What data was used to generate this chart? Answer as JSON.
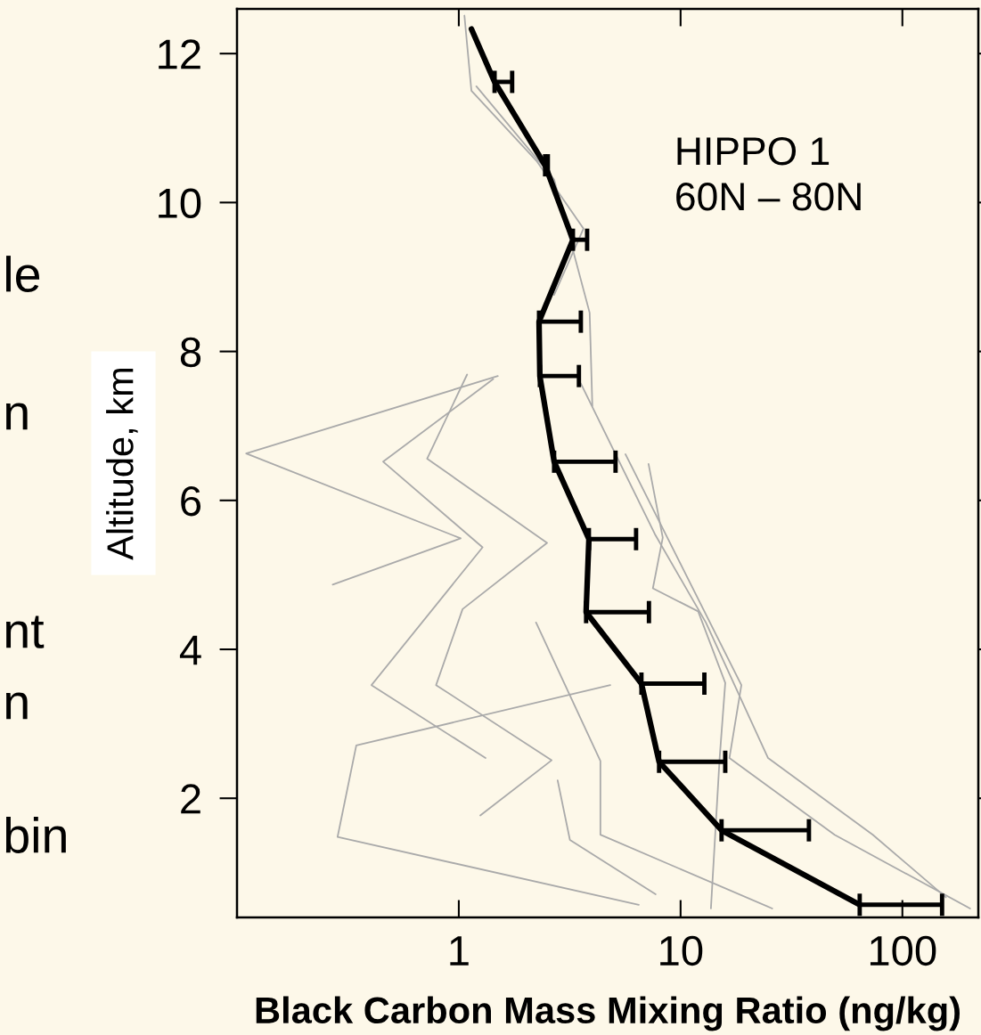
{
  "chart_data": {
    "type": "line",
    "xlabel": "Black Carbon Mass Mixing Ratio (ng/kg)",
    "ylabel": "Altitude, km",
    "log": "x",
    "xlim": [
      0.1,
      220
    ],
    "xticks": [
      1,
      10,
      100
    ],
    "ylim": [
      0.4,
      12.6
    ],
    "yticks": [
      2,
      4,
      6,
      8,
      10,
      12
    ],
    "grid": false,
    "legend": false,
    "annotations": [
      "HIPPO 1\n60N – 80N",
      "le",
      "n",
      "nt",
      "n",
      "bin"
    ],
    "series": [
      {
        "color": "#aaaaaa",
        "x": [
          1.06,
          1.14,
          2.24,
          3.65,
          2.69
        ],
        "values": [
          12.51,
          11.5,
          10.56,
          9.65,
          8.76
        ]
      },
      {
        "color": "#aaaaaa",
        "x": [
          1.2,
          2.69,
          3.89,
          4.0
        ],
        "values": [
          11.56,
          10.31,
          8.52,
          7.27
        ]
      },
      {
        "color": "#aaaaaa",
        "x": [
          1.5,
          0.11,
          1.02,
          0.27
        ],
        "values": [
          7.67,
          6.63,
          5.49,
          4.87
        ]
      },
      {
        "color": "#aaaaaa",
        "x": [
          4.82,
          0.345,
          0.284,
          6.48
        ],
        "values": [
          3.52,
          2.71,
          1.48,
          0.57
        ]
      },
      {
        "color": "#aaaaaa",
        "x": [
          1.43,
          0.456,
          1.28,
          0.404,
          1.32
        ],
        "values": [
          7.63,
          6.52,
          5.37,
          3.52,
          2.54
        ]
      },
      {
        "color": "#aaaaaa",
        "x": [
          1.09,
          0.72,
          2.5,
          1.04,
          0.79,
          2.62,
          1.25
        ],
        "values": [
          7.69,
          6.56,
          5.43,
          4.54,
          3.52,
          2.51,
          1.77
        ]
      },
      {
        "color": "#aaaaaa",
        "x": [
          7.17,
          8.31,
          7.5,
          12.0,
          15.9,
          15.0,
          13.7
        ],
        "values": [
          6.49,
          5.5,
          4.82,
          4.51,
          3.55,
          2.54,
          0.52
        ]
      },
      {
        "color": "#aaaaaa",
        "x": [
          5.64,
          18.8,
          16.6,
          49.5,
          202
        ],
        "values": [
          6.62,
          3.52,
          2.54,
          1.51,
          0.52
        ]
      },
      {
        "color": "#aaaaaa",
        "x": [
          3.55,
          7.65,
          13,
          24.8,
          73.6,
          157
        ],
        "values": [
          7.57,
          5.55,
          4.36,
          2.54,
          1.51,
          0.67
        ]
      },
      {
        "color": "#aaaaaa",
        "x": [
          2.79,
          3.17,
          7.72
        ],
        "values": [
          2.24,
          1.44,
          0.71
        ]
      },
      {
        "color": "#aaaaaa",
        "x": [
          2.23,
          4.35,
          4.35,
          25.9
        ],
        "values": [
          4.36,
          2.5,
          1.51,
          0.52
        ]
      },
      {
        "color": "#000000",
        "x": [
          1.14,
          1.45,
          2.45,
          3.27,
          2.3,
          2.32,
          2.69,
          3.86,
          3.75,
          6.66,
          8.0,
          15.3,
          64.2
        ],
        "values": [
          12.33,
          11.62,
          10.5,
          9.5,
          8.4,
          7.67,
          6.52,
          5.48,
          4.5,
          3.54,
          2.49,
          1.57,
          0.57
        ],
        "xerrors": [
          null,
          [
            1.45,
            1.74
          ],
          [
            2.45,
            2.52
          ],
          [
            3.27,
            3.79
          ],
          [
            2.3,
            3.55
          ],
          [
            2.32,
            3.48
          ],
          [
            2.69,
            5.09
          ],
          [
            3.86,
            6.3
          ],
          [
            3.75,
            7.2
          ],
          [
            6.66,
            12.8
          ],
          [
            8.0,
            15.9
          ],
          [
            15.3,
            37.9
          ],
          [
            64.2,
            151
          ]
        ]
      }
    ]
  }
}
